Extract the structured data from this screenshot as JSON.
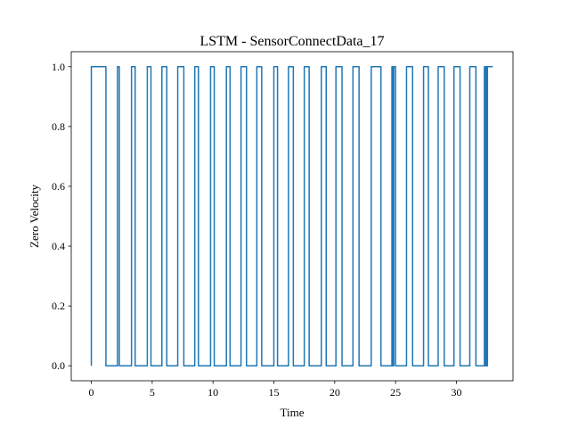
{
  "chart_data": {
    "type": "line",
    "title": "LSTM - SensorConnectData_17",
    "xlabel": "Time",
    "ylabel": "Zero Velocity",
    "xlim": [
      -1.65,
      34.65
    ],
    "ylim": [
      -0.05,
      1.05
    ],
    "xticks": [
      0,
      5,
      10,
      15,
      20,
      25,
      30
    ],
    "xtick_labels": [
      "0",
      "5",
      "10",
      "15",
      "20",
      "25",
      "30"
    ],
    "yticks": [
      0.0,
      0.2,
      0.4,
      0.6,
      0.8,
      1.0
    ],
    "ytick_labels": [
      "0.0",
      "0.2",
      "0.4",
      "0.6",
      "0.8",
      "1.0"
    ],
    "grid": false,
    "color": "#1f77b4",
    "series": [
      {
        "x": [
          0,
          0,
          1.2,
          1.2,
          2.15,
          2.15,
          2.3,
          2.3,
          3.3,
          3.3,
          3.6,
          3.6,
          4.6,
          4.6,
          4.9,
          4.9,
          5.8,
          5.8,
          6.2,
          6.2,
          7.1,
          7.1,
          7.6,
          7.6,
          8.5,
          8.5,
          8.8,
          8.8,
          9.8,
          9.8,
          10.1,
          10.1,
          11.1,
          11.1,
          11.4,
          11.4,
          12.3,
          12.3,
          12.75,
          12.75,
          13.6,
          13.6,
          14.0,
          14.0,
          15.0,
          15.0,
          15.3,
          15.3,
          16.2,
          16.2,
          16.6,
          16.6,
          17.5,
          17.5,
          17.9,
          17.9,
          18.9,
          18.9,
          19.3,
          19.3,
          20.1,
          20.1,
          20.6,
          20.6,
          21.5,
          21.5,
          22.0,
          22.0,
          23.0,
          23.0,
          23.8,
          23.8,
          24.7,
          24.7,
          24.75,
          24.75,
          24.85,
          24.85,
          25.0,
          25.0,
          25.9,
          25.9,
          26.4,
          26.4,
          27.3,
          27.3,
          27.7,
          27.7,
          28.5,
          28.5,
          29.0,
          29.0,
          29.8,
          29.8,
          30.3,
          30.3,
          31.1,
          31.1,
          31.6,
          31.6,
          32.3,
          32.3,
          32.35,
          32.35,
          32.45,
          32.45,
          32.5,
          32.5,
          32.55,
          32.55,
          33.0
        ],
        "y": [
          0,
          1,
          1,
          0,
          0,
          1,
          1,
          0,
          0,
          1,
          1,
          0,
          0,
          1,
          1,
          0,
          0,
          1,
          1,
          0,
          0,
          1,
          1,
          0,
          0,
          1,
          1,
          0,
          0,
          1,
          1,
          0,
          0,
          1,
          1,
          0,
          0,
          1,
          1,
          0,
          0,
          1,
          1,
          0,
          0,
          1,
          1,
          0,
          0,
          1,
          1,
          0,
          0,
          1,
          1,
          0,
          0,
          1,
          1,
          0,
          0,
          1,
          1,
          0,
          0,
          1,
          1,
          0,
          0,
          1,
          1,
          0,
          0,
          1,
          1,
          0,
          0,
          1,
          1,
          0,
          0,
          1,
          1,
          0,
          0,
          1,
          1,
          0,
          0,
          1,
          1,
          0,
          0,
          1,
          1,
          0,
          0,
          1,
          1,
          0,
          0,
          1,
          1,
          0,
          0,
          1,
          1,
          0,
          0,
          1,
          1
        ]
      }
    ]
  }
}
